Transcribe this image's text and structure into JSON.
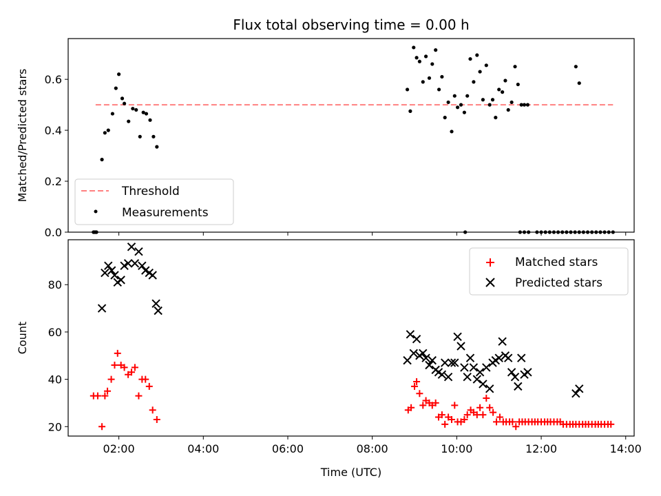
{
  "figure": {
    "title": "Flux total observing time = 0.00 h",
    "xlabel": "Time (UTC)",
    "x_ticks": [
      "02:00",
      "04:00",
      "06:00",
      "08:00",
      "10:00",
      "12:00",
      "14:00"
    ]
  },
  "chart_data": [
    {
      "type": "scatter",
      "panel": "top",
      "ylabel": "Matched/Predicted stars",
      "xlim": [
        0.8,
        14.2
      ],
      "ylim": [
        0.0,
        0.76
      ],
      "y_ticks": [
        0.0,
        0.2,
        0.4,
        0.6
      ],
      "x_unit": "hours UTC",
      "legend_position": "lower-left",
      "threshold": {
        "name": "Threshold",
        "y": 0.5,
        "x_range": [
          1.45,
          13.7
        ],
        "color": "#ff8080",
        "style": "dashed"
      },
      "series": [
        {
          "name": "Measurements",
          "color": "#000000",
          "marker": "dot",
          "x": [
            1.4,
            1.45,
            1.6,
            1.67,
            1.75,
            1.85,
            1.93,
            2.0,
            2.08,
            2.13,
            2.23,
            2.33,
            2.41,
            2.5,
            2.58,
            2.65,
            2.74,
            2.82,
            2.9,
            8.83,
            8.9,
            8.98,
            9.05,
            9.12,
            9.2,
            9.27,
            9.35,
            9.42,
            9.5,
            9.58,
            9.65,
            9.72,
            9.8,
            9.88,
            9.95,
            10.02,
            10.1,
            10.18,
            10.25,
            10.32,
            10.4,
            10.48,
            10.55,
            10.62,
            10.7,
            10.78,
            10.85,
            10.92,
            11.0,
            11.08,
            11.15,
            11.22,
            11.3,
            11.38,
            11.45,
            11.53,
            11.6,
            11.68,
            12.82,
            12.9,
            1.42,
            1.47,
            10.2,
            11.5,
            11.6,
            11.7,
            11.9,
            12.0,
            12.1,
            12.2,
            12.3,
            12.4,
            12.5,
            12.6,
            12.7,
            12.8,
            12.9,
            13.0,
            13.1,
            13.2,
            13.3,
            13.4,
            13.5,
            13.6,
            13.7
          ],
          "y": [
            0.0,
            0.0,
            0.285,
            0.39,
            0.4,
            0.465,
            0.565,
            0.62,
            0.525,
            0.505,
            0.435,
            0.485,
            0.48,
            0.375,
            0.47,
            0.465,
            0.44,
            0.375,
            0.335,
            0.56,
            0.475,
            0.725,
            0.685,
            0.67,
            0.59,
            0.69,
            0.605,
            0.66,
            0.715,
            0.56,
            0.61,
            0.45,
            0.51,
            0.395,
            0.535,
            0.49,
            0.5,
            0.47,
            0.535,
            0.68,
            0.59,
            0.695,
            0.63,
            0.52,
            0.655,
            0.5,
            0.52,
            0.45,
            0.56,
            0.55,
            0.595,
            0.48,
            0.51,
            0.65,
            0.58,
            0.5,
            0.5,
            0.5,
            0.65,
            0.585,
            0.0,
            0.0,
            0.0,
            0.0,
            0.0,
            0.0,
            0.0,
            0.0,
            0.0,
            0.0,
            0.0,
            0.0,
            0.0,
            0.0,
            0.0,
            0.0,
            0.0,
            0.0,
            0.0,
            0.0,
            0.0,
            0.0,
            0.0,
            0.0,
            0.0
          ]
        }
      ]
    },
    {
      "type": "scatter",
      "panel": "bottom",
      "ylabel": "Count",
      "xlim": [
        0.8,
        14.2
      ],
      "ylim": [
        16,
        99
      ],
      "y_ticks": [
        20,
        40,
        60,
        80
      ],
      "x_unit": "hours UTC",
      "legend_position": "top-right",
      "series": [
        {
          "name": "Matched stars",
          "color": "#ff0000",
          "marker": "plus",
          "x": [
            1.4,
            1.5,
            1.6,
            1.67,
            1.73,
            1.82,
            1.9,
            1.97,
            2.05,
            2.13,
            2.22,
            2.3,
            2.38,
            2.47,
            2.55,
            2.63,
            2.72,
            2.8,
            2.9,
            8.85,
            8.92,
            9.0,
            9.05,
            9.12,
            9.2,
            9.27,
            9.35,
            9.42,
            9.5,
            9.57,
            9.65,
            9.72,
            9.8,
            9.88,
            9.95,
            10.02,
            10.1,
            10.18,
            10.25,
            10.33,
            10.4,
            10.48,
            10.55,
            10.62,
            10.7,
            10.78,
            10.86,
            10.94,
            11.02,
            11.1,
            11.17,
            11.25,
            11.32,
            11.4,
            11.48,
            11.55,
            11.62,
            11.7,
            11.78,
            11.85,
            11.92,
            12.0,
            12.08,
            12.15,
            12.22,
            12.3,
            12.38,
            12.45,
            12.52,
            12.6,
            12.68,
            12.75,
            12.82,
            12.9,
            12.98,
            13.05,
            13.12,
            13.2,
            13.28,
            13.35,
            13.42,
            13.5,
            13.58,
            13.65
          ],
          "y": [
            33,
            33,
            20,
            33,
            35,
            40,
            46,
            51,
            46,
            45,
            42,
            43,
            45,
            33,
            40,
            40,
            37,
            27,
            23,
            27,
            28,
            37,
            39,
            34,
            29,
            31,
            30,
            29,
            30,
            24,
            25,
            21,
            24,
            23,
            29,
            22,
            22,
            23,
            25,
            27,
            26,
            25,
            28,
            25,
            32,
            28,
            26,
            22,
            24,
            22,
            22,
            22,
            22,
            20,
            22,
            22,
            22,
            22,
            22,
            22,
            22,
            22,
            22,
            22,
            22,
            22,
            22,
            22,
            21,
            21,
            21,
            21,
            21,
            21,
            21,
            21,
            21,
            21,
            21,
            21,
            21,
            21,
            21,
            21
          ]
        },
        {
          "name": "Predicted stars",
          "color": "#000000",
          "marker": "x",
          "x": [
            1.6,
            1.67,
            1.75,
            1.83,
            1.9,
            1.97,
            2.05,
            2.13,
            2.22,
            2.3,
            2.38,
            2.47,
            2.55,
            2.63,
            2.72,
            2.8,
            2.88,
            2.93,
            8.83,
            8.9,
            8.98,
            9.05,
            9.12,
            9.2,
            9.27,
            9.35,
            9.42,
            9.5,
            9.57,
            9.65,
            9.72,
            9.8,
            9.88,
            9.95,
            10.02,
            10.1,
            10.18,
            10.25,
            10.32,
            10.4,
            10.48,
            10.55,
            10.62,
            10.7,
            10.78,
            10.85,
            10.92,
            11.0,
            11.08,
            11.15,
            11.22,
            11.3,
            11.38,
            11.45,
            11.53,
            11.6,
            11.68,
            12.82,
            12.9
          ],
          "y": [
            70,
            85,
            88,
            86,
            84,
            81,
            82,
            88,
            89,
            96,
            89,
            94,
            88,
            86,
            85,
            84,
            72,
            69,
            48,
            59,
            51,
            57,
            50,
            51,
            49,
            46,
            48,
            44,
            43,
            42,
            47,
            41,
            47,
            47,
            58,
            54,
            45,
            41,
            49,
            45,
            40,
            43,
            38,
            45,
            36,
            47,
            48,
            49,
            56,
            50,
            49,
            43,
            41,
            37,
            49,
            42,
            43,
            34,
            36
          ]
        }
      ]
    }
  ]
}
